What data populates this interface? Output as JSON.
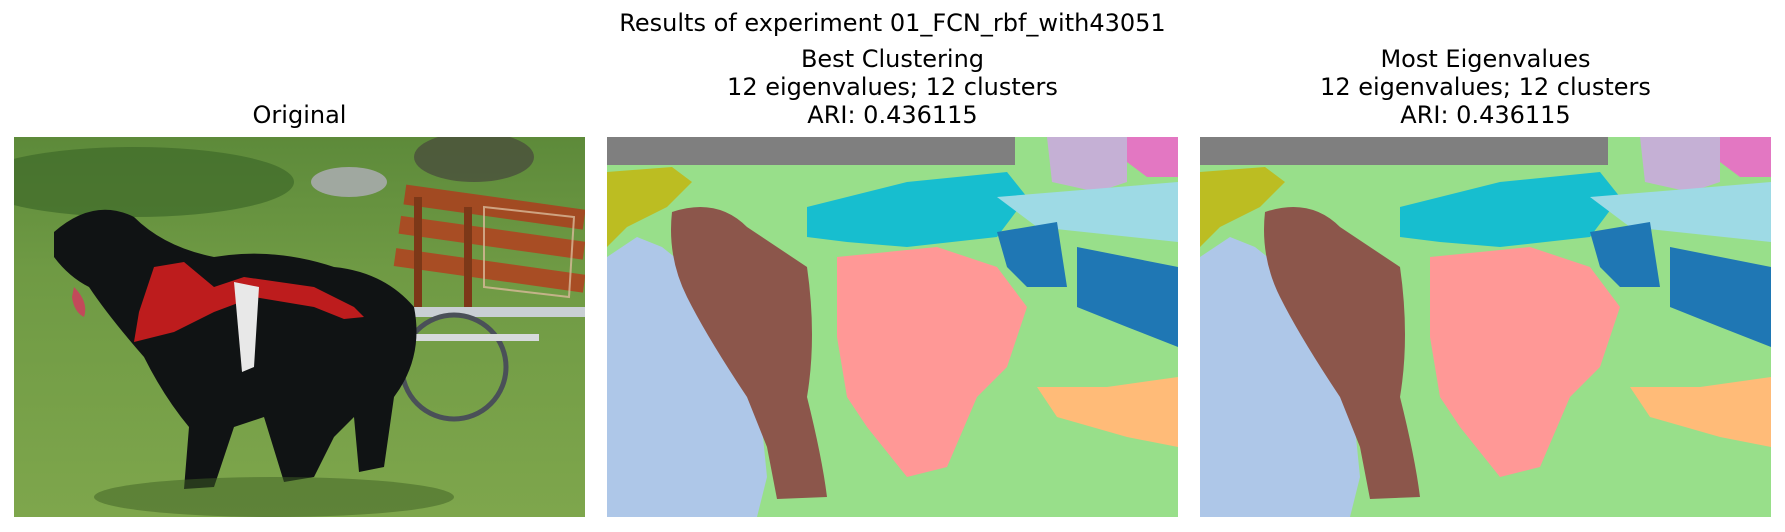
{
  "figure": {
    "suptitle": "Results of experiment 01_FCN_rbf_with43051"
  },
  "panels": [
    {
      "id": "original",
      "title_lines": [
        "Original"
      ]
    },
    {
      "id": "best",
      "title_lines": [
        "Best Clustering",
        "12 eigenvalues; 12 clusters",
        "ARI: 0.436115"
      ]
    },
    {
      "id": "most",
      "title_lines": [
        "Most Eigenvalues",
        "12 eigenvalues; 12 clusters",
        "ARI: 0.436115"
      ]
    }
  ],
  "cluster_colors": {
    "gray": "#7f7f7f",
    "olive": "#bcbd22",
    "light_purple": "#c5b0d5",
    "pink": "#e377c2",
    "light_green": "#98df8a",
    "cyan": "#17becf",
    "light_cyan": "#9edae5",
    "blue": "#1f77b4",
    "light_blue": "#aec7e8",
    "brown": "#8c564b",
    "light_red": "#ff9896",
    "light_orange": "#ffbb78"
  }
}
